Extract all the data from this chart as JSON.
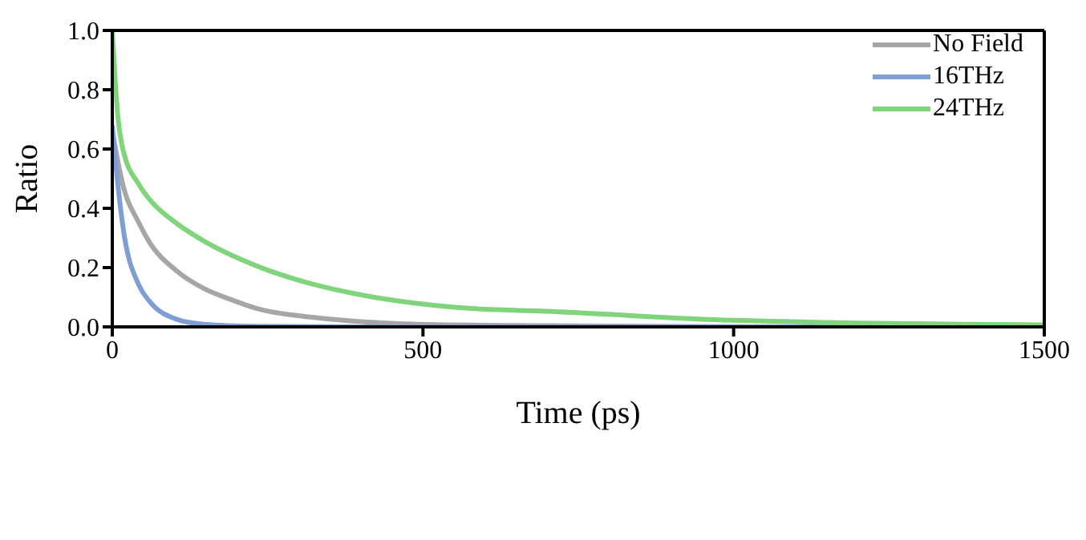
{
  "chart_data": {
    "type": "line",
    "xlabel": "Time (ps)",
    "ylabel": "Ratio",
    "xlim": [
      0,
      1500
    ],
    "xticks": [
      0,
      500,
      1000,
      1500
    ],
    "ylim": [
      0,
      1
    ],
    "yticks": [
      {
        "value": 0,
        "label": "0.0"
      },
      {
        "value": 0.2,
        "label": "0.2"
      },
      {
        "value": 0.4,
        "label": "0.4"
      },
      {
        "value": 0.6,
        "label": "0.6"
      },
      {
        "value": 0.8,
        "label": "0.8"
      },
      {
        "value": 1,
        "label": "1.0"
      }
    ],
    "legend": "top right",
    "marker": "none",
    "line_style": "solid",
    "series": [
      {
        "name": "No Field",
        "color": "#a6a6a6",
        "x": [
          0,
          17,
          43,
          60,
          103,
          147,
          190,
          233,
          319,
          405,
          491,
          700,
          1000,
          1500
        ],
        "values": [
          0.66,
          0.48,
          0.35,
          0.285,
          0.19,
          0.13,
          0.093,
          0.062,
          0.033,
          0.017,
          0.009,
          0.004,
          0.001,
          0
        ]
      },
      {
        "name": "16THz",
        "color": "#7f9fd4",
        "x": [
          0,
          9,
          17,
          43,
          60,
          103,
          147,
          233,
          400,
          1000,
          1500
        ],
        "values": [
          0.68,
          0.48,
          0.34,
          0.14,
          0.086,
          0.026,
          0.009,
          0.002,
          0,
          0,
          0
        ]
      },
      {
        "name": "24THz",
        "color": "#80d47c",
        "x": [
          0,
          9,
          17,
          43,
          60,
          103,
          147,
          233,
          319,
          405,
          491,
          578,
          698,
          1000,
          1500
        ],
        "values": [
          1,
          0.71,
          0.6,
          0.48,
          0.43,
          0.35,
          0.29,
          0.205,
          0.146,
          0.106,
          0.079,
          0.062,
          0.053,
          0.022,
          0.007
        ]
      }
    ]
  }
}
